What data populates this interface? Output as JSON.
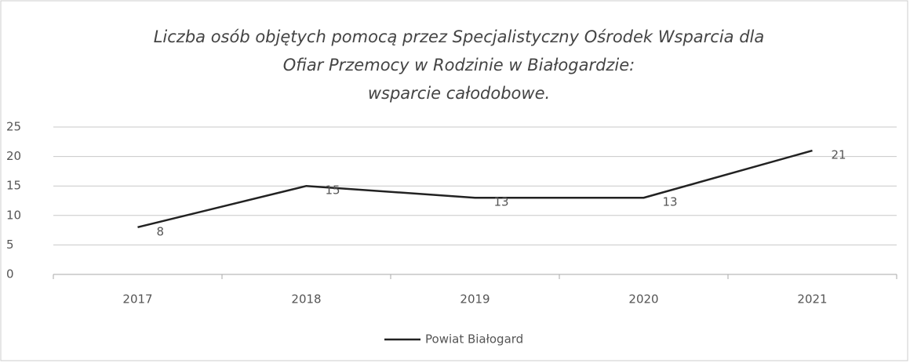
{
  "chart_data": {
    "type": "line",
    "title": [
      "Liczba osób objętych pomocą przez Specjalistyczny Ośrodek Wsparcia dla",
      "Ofiar Przemocy w Rodzinie w Białogardzie:",
      "wsparcie całodobowe."
    ],
    "categories": [
      "2017",
      "2018",
      "2019",
      "2020",
      "2021"
    ],
    "series": [
      {
        "name": "Powiat Białogard",
        "color": "#222222",
        "values": [
          8,
          15,
          13,
          13,
          21
        ]
      }
    ],
    "ylim": [
      0,
      25
    ],
    "yticks": [
      0,
      5,
      10,
      15,
      20,
      25
    ],
    "grid": true,
    "legend": "bottom",
    "data_labels": true
  }
}
